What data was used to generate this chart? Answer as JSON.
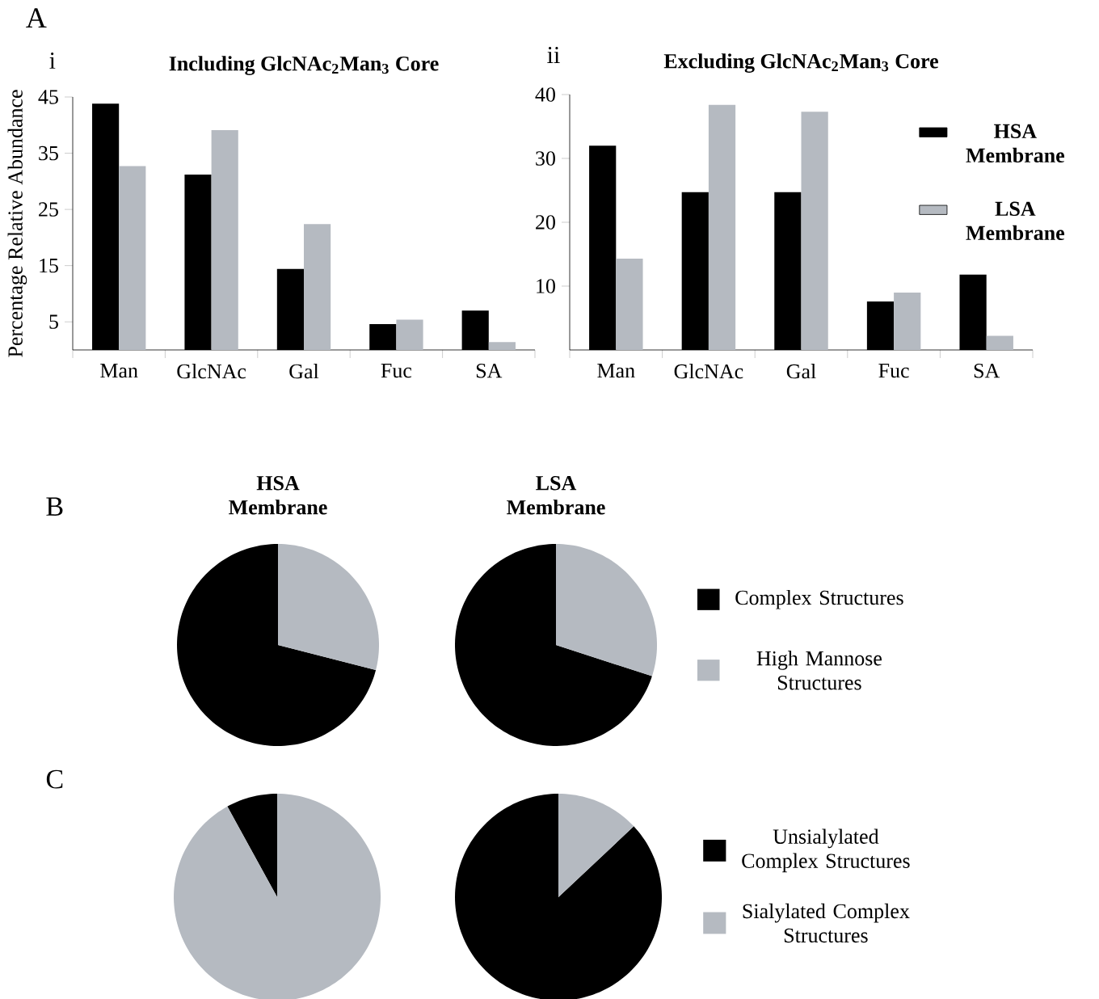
{
  "chart_data": [
    {
      "type": "bar",
      "title": "Including GlcNAc$_{2}$Man$_{3}$ Core",
      "ylabel": "Percentage Relative Abundance",
      "categories": [
        "Man",
        "GlcNAc",
        "Gal",
        "Fuc",
        "SA"
      ],
      "series": [
        {
          "color": "#000000",
          "values": [
            43.8,
            31.2,
            14.4,
            4.6,
            7.0
          ]
        },
        {
          "color": "#b5bac1",
          "values": [
            32.7,
            39.1,
            22.4,
            5.4,
            1.4
          ]
        }
      ],
      "ylim": [
        0,
        45
      ],
      "yticks": [
        5,
        15,
        25,
        35,
        45
      ],
      "annotations": [
        "A",
        "i"
      ]
    },
    {
      "type": "bar",
      "title": "Excluding GlcNAc$_{2}$Man$_{3}$ Core",
      "categories": [
        "Man",
        "GlcNAc",
        "Gal",
        "Fuc",
        "SA"
      ],
      "series": [
        {
          "name": "HSA Membrane",
          "color": "#000000",
          "values": [
            32.0,
            24.7,
            24.7,
            7.6,
            11.8
          ]
        },
        {
          "name": "LSA Membrane",
          "color": "#b5bac1",
          "values": [
            14.3,
            38.4,
            37.3,
            9.0,
            2.2
          ]
        }
      ],
      "ylim": [
        0,
        40
      ],
      "yticks": [
        10,
        20,
        30,
        40
      ],
      "legend": "top right",
      "annotations": [
        "ii"
      ]
    },
    {
      "type": "pie",
      "title": "HSA Membrane",
      "values": [
        71,
        29
      ],
      "colors": [
        "#000000",
        "#b5bac1"
      ],
      "annotations": [
        "B"
      ]
    },
    {
      "type": "pie",
      "title": "LSA Membrane",
      "categories": [
        "Complex Structures",
        "High Mannose Structures"
      ],
      "values": [
        70,
        30
      ],
      "colors": [
        "#000000",
        "#b5bac1"
      ],
      "legend": "right"
    },
    {
      "type": "pie",
      "values": [
        8,
        92
      ],
      "colors": [
        "#000000",
        "#b5bac1"
      ],
      "annotations": [
        "C"
      ]
    },
    {
      "type": "pie",
      "categories": [
        "Unsialylated Complex Structures",
        "Sialylated Complex Structures"
      ],
      "values": [
        87,
        13
      ],
      "colors": [
        "#000000",
        "#b5bac1"
      ],
      "legend": "right"
    }
  ]
}
